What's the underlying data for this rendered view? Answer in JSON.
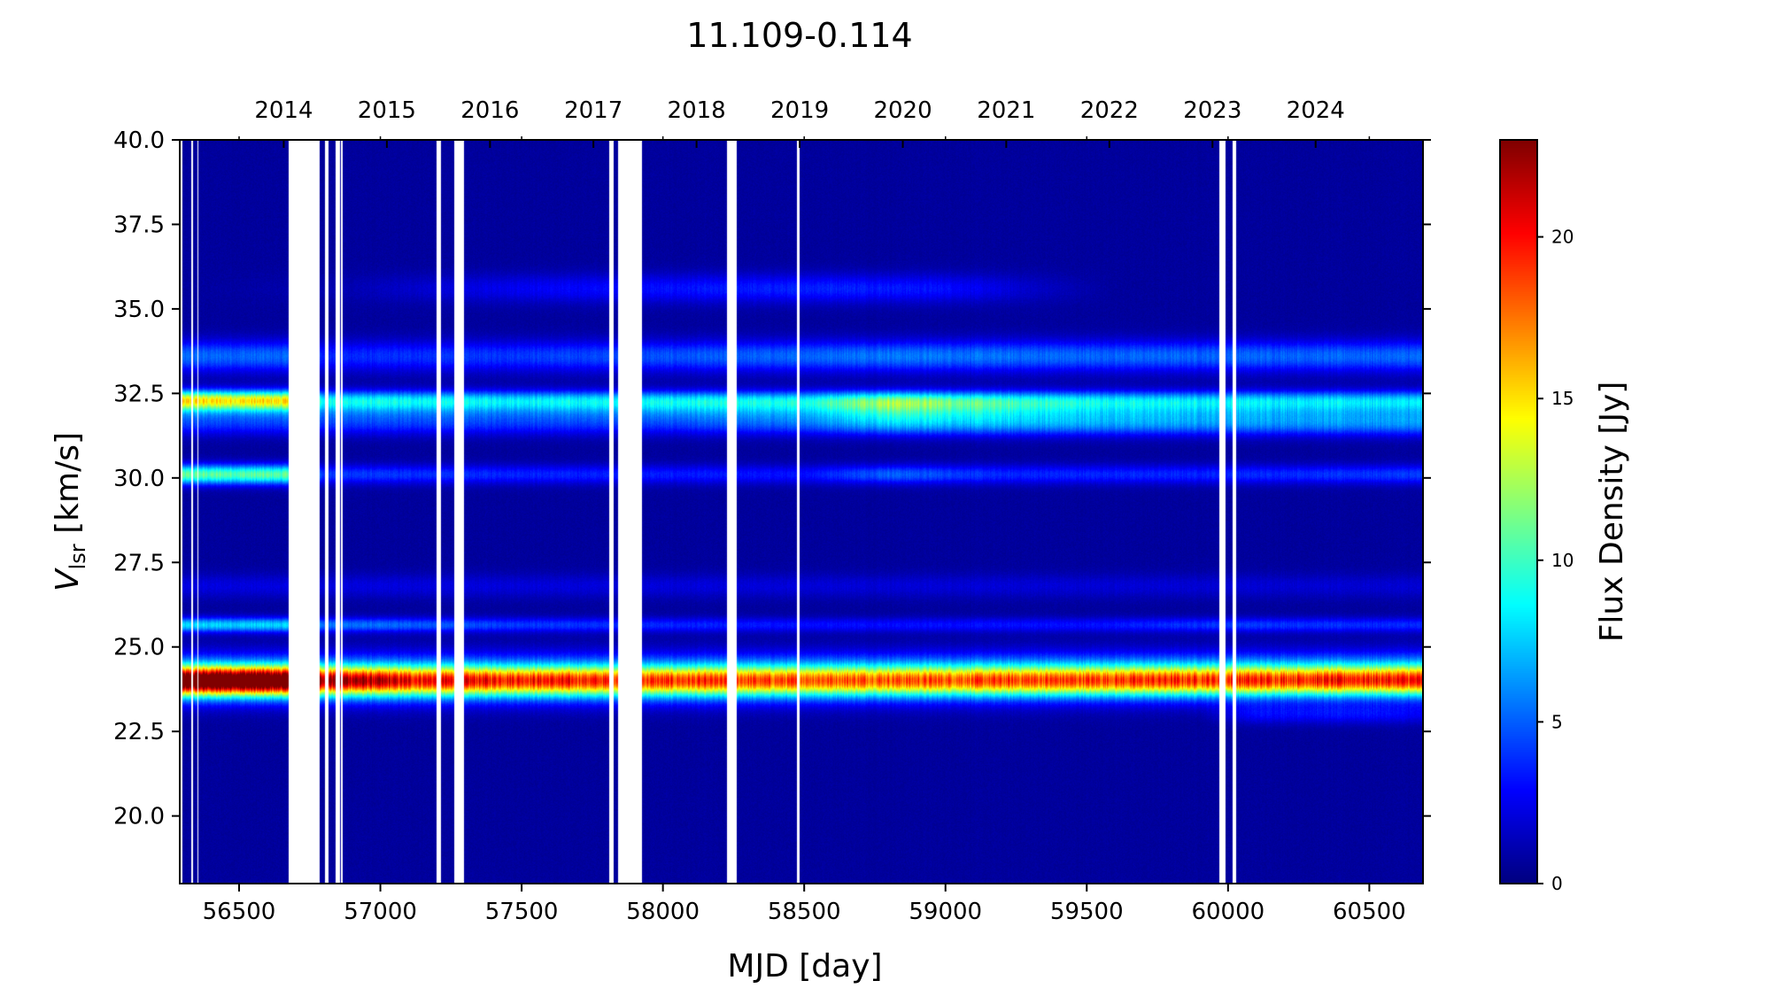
{
  "chart_data": {
    "type": "heatmap",
    "title": "11.109-0.114",
    "xlabel": "MJD [day]",
    "ylabel_main": "V",
    "ylabel_sub": "lsr",
    "ylabel_rest": " [km/s]",
    "colorbar_label": "Flux Density [Jy]",
    "colormap": "jet",
    "xlim": [
      56290,
      60690
    ],
    "ylim": [
      18.0,
      40.0
    ],
    "clim": [
      0,
      23
    ],
    "x_ticks": [
      56500,
      57000,
      57500,
      58000,
      58500,
      59000,
      59500,
      60000,
      60500
    ],
    "x_tick_labels": [
      "56500",
      "57000",
      "57500",
      "58000",
      "58500",
      "59000",
      "59500",
      "60000",
      "60500"
    ],
    "y_ticks": [
      20.0,
      22.5,
      25.0,
      27.5,
      30.0,
      32.5,
      35.0,
      37.5,
      40.0
    ],
    "y_tick_labels": [
      "20.0",
      "22.5",
      "25.0",
      "27.5",
      "30.0",
      "32.5",
      "35.0",
      "37.5",
      "40.0"
    ],
    "year_axis": {
      "position": "top",
      "ticks": [
        56658,
        57023,
        57388,
        57754,
        58119,
        58484,
        58849,
        59215,
        59580,
        59945,
        60310
      ],
      "labels": [
        "2014",
        "2015",
        "2016",
        "2017",
        "2018",
        "2019",
        "2020",
        "2021",
        "2022",
        "2023",
        "2024"
      ]
    },
    "colorbar_ticks": [
      0,
      5,
      10,
      15,
      20
    ],
    "colorbar_tick_labels": [
      "0",
      "5",
      "10",
      "15",
      "20"
    ],
    "background_flux": 0.4,
    "data_gaps_mjd": [
      [
        56290,
        56300
      ],
      [
        56330,
        56336
      ],
      [
        56352,
        56357
      ],
      [
        56675,
        56785
      ],
      [
        56805,
        56818
      ],
      [
        56842,
        56856
      ],
      [
        56860,
        56868
      ],
      [
        57200,
        57213
      ],
      [
        57263,
        57297
      ],
      [
        57810,
        57825
      ],
      [
        57840,
        57925
      ],
      [
        58228,
        58262
      ],
      [
        58475,
        58483
      ],
      [
        59968,
        59992
      ],
      [
        60015,
        60030
      ]
    ],
    "series": [
      {
        "velocity": 24.0,
        "width": 0.28,
        "profile": [
          [
            56290,
            21
          ],
          [
            56450,
            23
          ],
          [
            56650,
            22
          ],
          [
            56800,
            18
          ],
          [
            57100,
            15
          ],
          [
            57500,
            14.5
          ],
          [
            58000,
            13.5
          ],
          [
            58500,
            13
          ],
          [
            59000,
            13
          ],
          [
            59500,
            13.5
          ],
          [
            60000,
            14
          ],
          [
            60500,
            14.5
          ],
          [
            60690,
            14.5
          ]
        ]
      },
      {
        "velocity": 23.7,
        "width": 0.35,
        "profile": [
          [
            56290,
            4
          ],
          [
            58000,
            4
          ],
          [
            60690,
            3
          ]
        ]
      },
      {
        "velocity": 24.4,
        "width": 0.35,
        "profile": [
          [
            56290,
            4
          ],
          [
            58000,
            4
          ],
          [
            60690,
            5
          ]
        ]
      },
      {
        "velocity": 25.65,
        "width": 0.15,
        "profile": [
          [
            56290,
            7
          ],
          [
            56670,
            7
          ],
          [
            56800,
            5
          ],
          [
            57500,
            3.5
          ],
          [
            58500,
            2.5
          ],
          [
            59500,
            2.5
          ],
          [
            60000,
            3.5
          ],
          [
            60690,
            3
          ]
        ]
      },
      {
        "velocity": 23.0,
        "width": 0.2,
        "profile": [
          [
            56290,
            0
          ],
          [
            59900,
            0
          ],
          [
            60100,
            2
          ],
          [
            60500,
            2.2
          ],
          [
            60690,
            1.5
          ]
        ]
      },
      {
        "velocity": 32.3,
        "width": 0.2,
        "profile": [
          [
            56290,
            13
          ],
          [
            56670,
            13
          ],
          [
            56800,
            7
          ],
          [
            57500,
            6.5
          ],
          [
            58500,
            6.5
          ],
          [
            58800,
            9
          ],
          [
            59200,
            7
          ],
          [
            59700,
            6
          ],
          [
            60690,
            6
          ]
        ]
      },
      {
        "velocity": 31.6,
        "width": 0.25,
        "profile": [
          [
            56290,
            3
          ],
          [
            58000,
            3
          ],
          [
            58500,
            4
          ],
          [
            58800,
            6
          ],
          [
            59300,
            5.5
          ],
          [
            60000,
            5
          ],
          [
            60690,
            5
          ]
        ]
      },
      {
        "velocity": 32.0,
        "width": 0.22,
        "profile": [
          [
            56290,
            3
          ],
          [
            57500,
            3
          ],
          [
            58500,
            4
          ],
          [
            58800,
            6
          ],
          [
            59500,
            4
          ],
          [
            60690,
            3
          ]
        ]
      },
      {
        "velocity": 30.1,
        "width": 0.2,
        "profile": [
          [
            56290,
            10
          ],
          [
            56670,
            10
          ],
          [
            56800,
            3.5
          ],
          [
            57500,
            3
          ],
          [
            58500,
            2.5
          ],
          [
            58800,
            4.5
          ],
          [
            59200,
            3
          ],
          [
            60000,
            3
          ],
          [
            60690,
            3.5
          ]
        ]
      },
      {
        "velocity": 33.6,
        "width": 0.32,
        "profile": [
          [
            56290,
            4.5
          ],
          [
            56670,
            4.5
          ],
          [
            56800,
            3
          ],
          [
            57500,
            3.5
          ],
          [
            58500,
            4.5
          ],
          [
            58800,
            5
          ],
          [
            59500,
            4.5
          ],
          [
            60690,
            4.5
          ]
        ]
      },
      {
        "velocity": 35.6,
        "width": 0.3,
        "profile": [
          [
            56290,
            0
          ],
          [
            56900,
            0.5
          ],
          [
            57500,
            2
          ],
          [
            58000,
            2.5
          ],
          [
            58600,
            3
          ],
          [
            59000,
            2.5
          ],
          [
            59300,
            1
          ],
          [
            59600,
            0
          ],
          [
            60690,
            0
          ]
        ]
      },
      {
        "velocity": 26.8,
        "width": 0.25,
        "profile": [
          [
            56290,
            1.5
          ],
          [
            60690,
            1.2
          ]
        ]
      }
    ]
  }
}
